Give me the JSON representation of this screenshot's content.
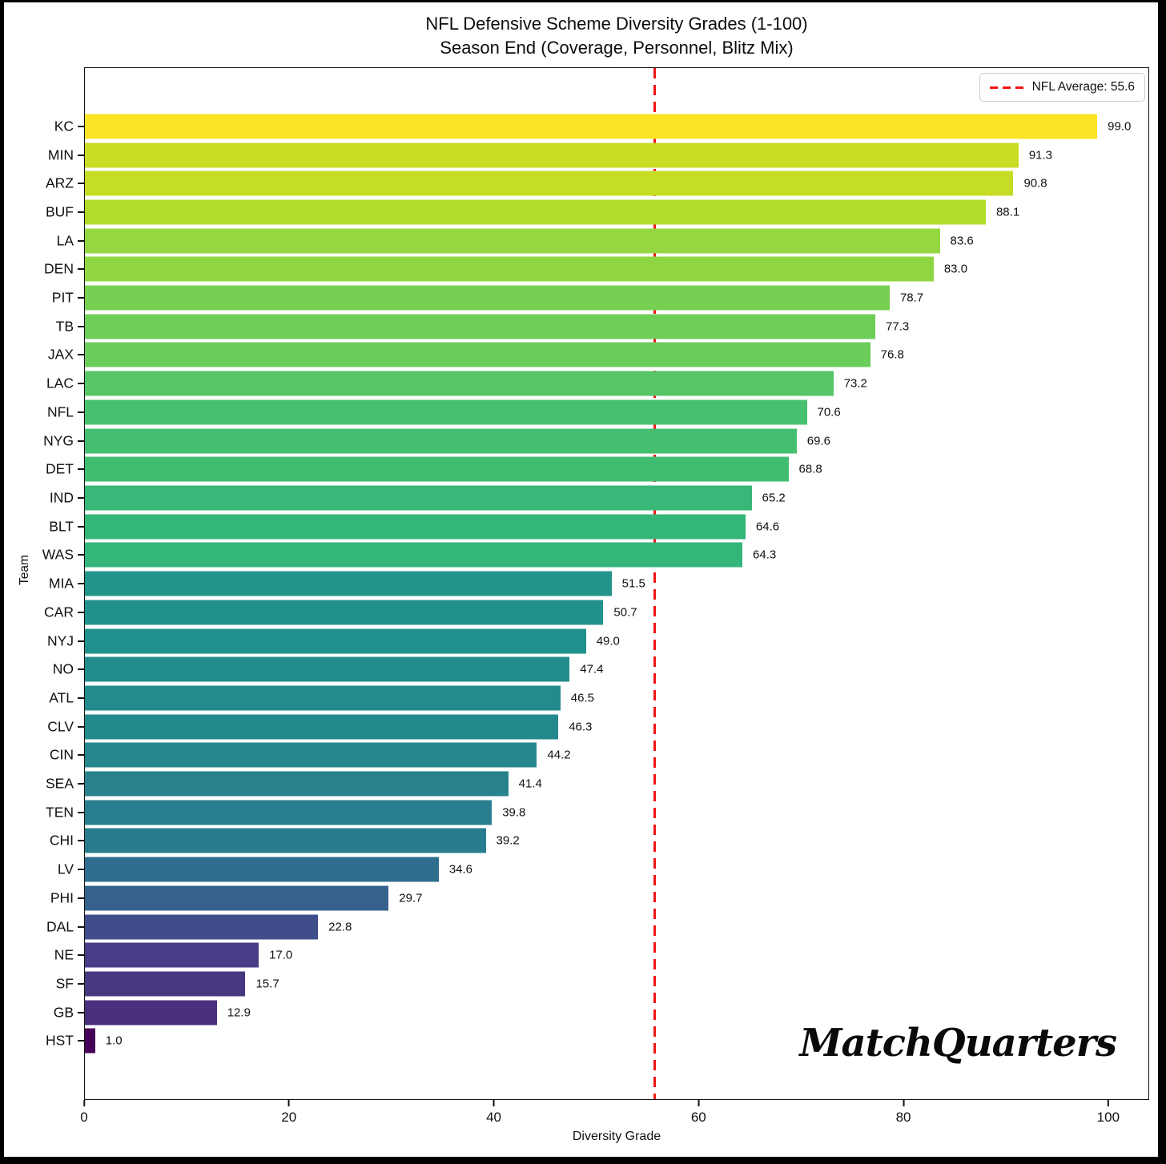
{
  "frame": {
    "background": "#000000",
    "figure_background": "#ffffff"
  },
  "title": {
    "line1": "NFL Defensive Scheme Diversity Grades (1-100)",
    "line2": "Season End (Coverage, Personnel, Blitz Mix)"
  },
  "legend": {
    "label": "NFL Average: 55.6",
    "line_color": "#f01515"
  },
  "axes": {
    "xlabel": "Diversity Grade",
    "ylabel": "Team",
    "x_ticks": [
      0,
      20,
      40,
      60,
      80,
      100
    ],
    "x_max": 104
  },
  "watermark": "MatchQuarters",
  "chart_data": {
    "type": "bar",
    "orientation": "horizontal",
    "title": "NFL Defensive Scheme Diversity Grades (1-100)",
    "subtitle": "Season End (Coverage, Personnel, Blitz Mix)",
    "xlabel": "Diversity Grade",
    "ylabel": "Team",
    "xlim": [
      0,
      104
    ],
    "grid": false,
    "legend_position": "upper right",
    "average_line": {
      "value": 55.6,
      "label": "NFL Average: 55.6",
      "color": "#f01515",
      "style": "dashed"
    },
    "categories": [
      "KC",
      "MIN",
      "ARZ",
      "BUF",
      "LA",
      "DEN",
      "PIT",
      "TB",
      "JAX",
      "LAC",
      "NFL",
      "NYG",
      "DET",
      "IND",
      "BLT",
      "WAS",
      "MIA",
      "CAR",
      "NYJ",
      "NO",
      "ATL",
      "CLV",
      "CIN",
      "SEA",
      "TEN",
      "CHI",
      "LV",
      "PHI",
      "DAL",
      "NE",
      "SF",
      "GB",
      "HST"
    ],
    "values": [
      99.0,
      91.3,
      90.8,
      88.1,
      83.6,
      83.0,
      78.7,
      77.3,
      76.8,
      73.2,
      70.6,
      69.6,
      68.8,
      65.2,
      64.6,
      64.3,
      51.5,
      50.7,
      49.0,
      47.4,
      46.5,
      46.3,
      44.2,
      41.4,
      39.8,
      39.2,
      34.6,
      29.7,
      22.8,
      17.0,
      15.7,
      12.9,
      1.0
    ],
    "colors": [
      "#FCE426",
      "#C7DE24",
      "#C5DE25",
      "#B2DC2B",
      "#94D741",
      "#90D643",
      "#77D052",
      "#6ECE58",
      "#6BCD5A",
      "#57C666",
      "#48C16E",
      "#44BF70",
      "#41BD72",
      "#37B878",
      "#35B679",
      "#34B57A",
      "#229489",
      "#21928B",
      "#20908C",
      "#228C8D",
      "#238A8D",
      "#23898D",
      "#25868E",
      "#27828E",
      "#287E8E",
      "#297C8E",
      "#2F6E8E",
      "#36618C",
      "#3F4D8A",
      "#473C85",
      "#483781",
      "#4A2F7D",
      "#450457"
    ]
  }
}
